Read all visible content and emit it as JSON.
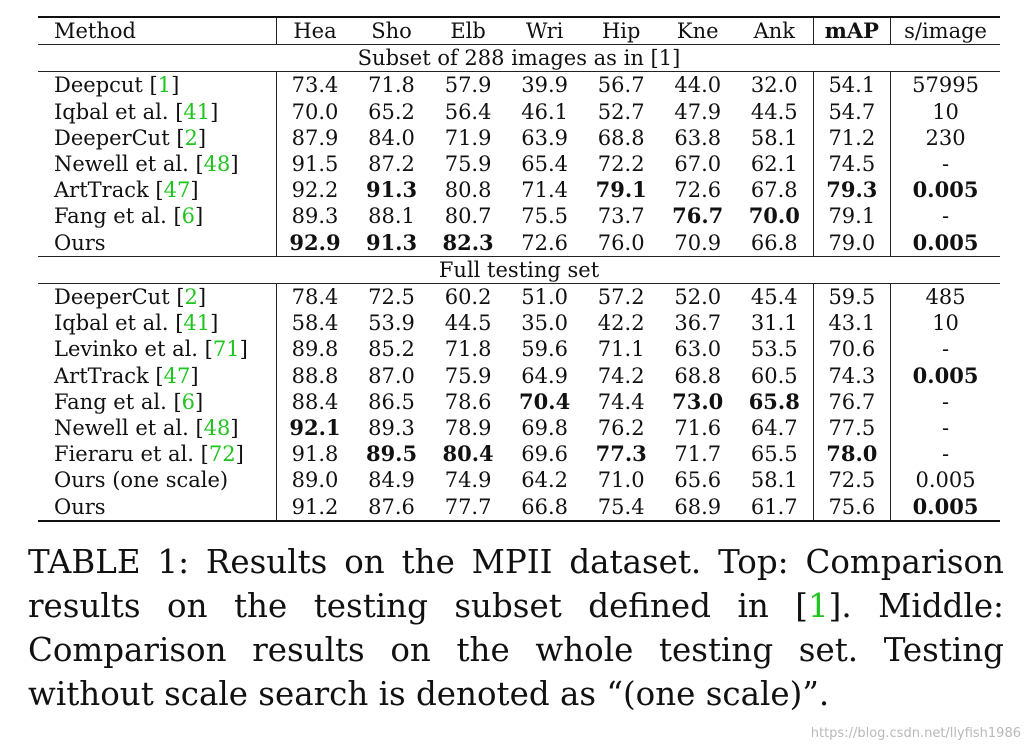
{
  "table": {
    "headers": [
      "Method",
      "Hea",
      "Sho",
      "Elb",
      "Wri",
      "Hip",
      "Kne",
      "Ank",
      "mAP",
      "s/image"
    ],
    "sections": [
      {
        "title": "Subset of 288 images as in [1]",
        "rows": [
          {
            "name": "Deepcut",
            "ref": "1",
            "values": [
              "73.4",
              "71.8",
              "57.9",
              "39.9",
              "56.7",
              "44.0",
              "32.0",
              "54.1",
              "57995"
            ],
            "bold": []
          },
          {
            "name": "Iqbal et al.",
            "ref": "41",
            "values": [
              "70.0",
              "65.2",
              "56.4",
              "46.1",
              "52.7",
              "47.9",
              "44.5",
              "54.7",
              "10"
            ],
            "bold": []
          },
          {
            "name": "DeeperCut",
            "ref": "2",
            "values": [
              "87.9",
              "84.0",
              "71.9",
              "63.9",
              "68.8",
              "63.8",
              "58.1",
              "71.2",
              "230"
            ],
            "bold": []
          },
          {
            "name": "Newell et al.",
            "ref": "48",
            "values": [
              "91.5",
              "87.2",
              "75.9",
              "65.4",
              "72.2",
              "67.0",
              "62.1",
              "74.5",
              "-"
            ],
            "bold": []
          },
          {
            "name": "ArtTrack",
            "ref": "47",
            "values": [
              "92.2",
              "91.3",
              "80.8",
              "71.4",
              "79.1",
              "72.6",
              "67.8",
              "79.3",
              "0.005"
            ],
            "bold": [
              1,
              4,
              7,
              8
            ]
          },
          {
            "name": "Fang et al.",
            "ref": "6",
            "values": [
              "89.3",
              "88.1",
              "80.7",
              "75.5",
              "73.7",
              "76.7",
              "70.0",
              "79.1",
              "-"
            ],
            "bold": [
              5,
              6
            ]
          },
          {
            "name": "Ours",
            "ref": "",
            "values": [
              "92.9",
              "91.3",
              "82.3",
              "72.6",
              "76.0",
              "70.9",
              "66.8",
              "79.0",
              "0.005"
            ],
            "bold": [
              0,
              1,
              2,
              8
            ]
          }
        ]
      },
      {
        "title": "Full testing set",
        "rows": [
          {
            "name": "DeeperCut",
            "ref": "2",
            "values": [
              "78.4",
              "72.5",
              "60.2",
              "51.0",
              "57.2",
              "52.0",
              "45.4",
              "59.5",
              "485"
            ],
            "bold": []
          },
          {
            "name": "Iqbal et al.",
            "ref": "41",
            "values": [
              "58.4",
              "53.9",
              "44.5",
              "35.0",
              "42.2",
              "36.7",
              "31.1",
              "43.1",
              "10"
            ],
            "bold": []
          },
          {
            "name": "Levinko et al.",
            "ref": "71",
            "values": [
              "89.8",
              "85.2",
              "71.8",
              "59.6",
              "71.1",
              "63.0",
              "53.5",
              "70.6",
              "-"
            ],
            "bold": []
          },
          {
            "name": "ArtTrack",
            "ref": "47",
            "values": [
              "88.8",
              "87.0",
              "75.9",
              "64.9",
              "74.2",
              "68.8",
              "60.5",
              "74.3",
              "0.005"
            ],
            "bold": [
              8
            ]
          },
          {
            "name": "Fang et al.",
            "ref": "6",
            "values": [
              "88.4",
              "86.5",
              "78.6",
              "70.4",
              "74.4",
              "73.0",
              "65.8",
              "76.7",
              "-"
            ],
            "bold": [
              3,
              5,
              6
            ]
          },
          {
            "name": "Newell et al.",
            "ref": "48",
            "values": [
              "92.1",
              "89.3",
              "78.9",
              "69.8",
              "76.2",
              "71.6",
              "64.7",
              "77.5",
              "-"
            ],
            "bold": [
              0
            ]
          },
          {
            "name": "Fieraru et al.",
            "ref": "72",
            "values": [
              "91.8",
              "89.5",
              "80.4",
              "69.6",
              "77.3",
              "71.7",
              "65.5",
              "78.0",
              "-"
            ],
            "bold": [
              1,
              2,
              4,
              7
            ]
          },
          {
            "name": "Ours (one scale)",
            "ref": "",
            "values": [
              "89.0",
              "84.9",
              "74.9",
              "64.2",
              "71.0",
              "65.6",
              "58.1",
              "72.5",
              "0.005"
            ],
            "bold": []
          },
          {
            "name": "Ours",
            "ref": "",
            "values": [
              "91.2",
              "87.6",
              "77.7",
              "66.8",
              "75.4",
              "68.9",
              "61.7",
              "75.6",
              "0.005"
            ],
            "bold": [
              8
            ]
          }
        ]
      }
    ]
  },
  "caption": {
    "label": "TABLE 1: Results on the MPII dataset. Top: Comparison results on the testing subset defined in [",
    "ref": "1",
    "rest": "]. Middle: Comparison results on the whole testing set. Testing without scale search is denoted as “(one scale)”."
  },
  "watermark": "https://blog.csdn.net/llyfish1986",
  "colors": {
    "citation": "#1fc41f",
    "watermark": "#b9b9b9"
  }
}
